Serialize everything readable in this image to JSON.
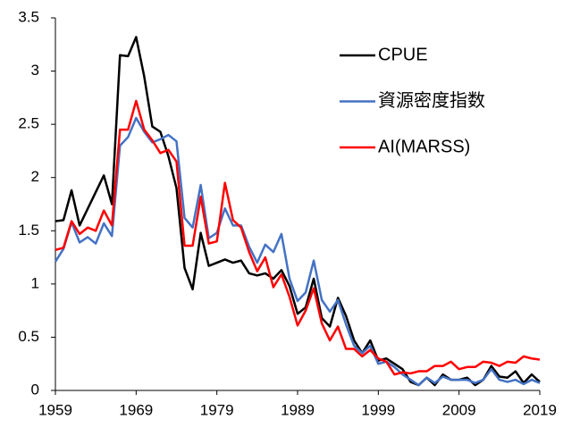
{
  "chart_data": {
    "type": "line",
    "x": [
      1959,
      1960,
      1961,
      1962,
      1963,
      1964,
      1965,
      1966,
      1967,
      1968,
      1969,
      1970,
      1971,
      1972,
      1973,
      1974,
      1975,
      1976,
      1977,
      1978,
      1979,
      1980,
      1981,
      1982,
      1983,
      1984,
      1985,
      1986,
      1987,
      1988,
      1989,
      1990,
      1991,
      1992,
      1993,
      1994,
      1995,
      1996,
      1997,
      1998,
      1999,
      2000,
      2001,
      2002,
      2003,
      2004,
      2005,
      2006,
      2007,
      2008,
      2009,
      2010,
      2011,
      2012,
      2013,
      2014,
      2015,
      2016,
      2017,
      2018,
      2019
    ],
    "series": [
      {
        "name": "CPUE",
        "color": "#000000",
        "x": [
          1959,
          1960,
          1961,
          1962,
          1965,
          1966,
          1967,
          1968,
          1969,
          1970,
          1971,
          1972,
          1973,
          1974,
          1975,
          1976,
          1977,
          1978,
          1979,
          1980,
          1981,
          1982,
          1983,
          1984,
          1985,
          1986,
          1987,
          1988,
          1989,
          1990,
          1991,
          1992,
          1993,
          1994,
          1995,
          1996,
          1997,
          1998,
          1999,
          2000,
          2001,
          2002,
          2003,
          2004,
          2005,
          2006,
          2007,
          2008,
          2009,
          2010,
          2011,
          2012,
          2013,
          2014,
          2015,
          2016,
          2017,
          2018,
          2019
        ],
        "values": [
          1.59,
          1.6,
          1.88,
          1.55,
          2.02,
          1.75,
          3.15,
          3.14,
          3.32,
          2.95,
          2.48,
          2.43,
          2.2,
          1.9,
          1.15,
          0.95,
          1.48,
          1.17,
          1.2,
          1.23,
          1.2,
          1.22,
          1.1,
          1.08,
          1.1,
          1.05,
          1.13,
          0.98,
          0.72,
          0.78,
          1.05,
          0.68,
          0.6,
          0.87,
          0.7,
          0.47,
          0.35,
          0.47,
          0.28,
          0.3,
          0.25,
          0.2,
          0.08,
          0.05,
          0.12,
          0.05,
          0.15,
          0.1,
          0.1,
          0.12,
          0.05,
          0.1,
          0.23,
          0.13,
          0.12,
          0.18,
          0.07,
          0.15,
          0.08
        ]
      },
      {
        "name": "資源密度指数",
        "color": "#4472c4",
        "values": [
          1.21,
          1.33,
          1.58,
          1.39,
          1.44,
          1.38,
          1.57,
          1.45,
          2.3,
          2.38,
          2.56,
          2.43,
          2.33,
          2.36,
          2.4,
          2.34,
          1.62,
          1.53,
          1.93,
          1.43,
          1.48,
          1.71,
          1.55,
          1.55,
          1.35,
          1.2,
          1.37,
          1.3,
          1.47,
          1.05,
          0.84,
          0.92,
          1.22,
          0.85,
          0.74,
          0.85,
          0.62,
          0.42,
          0.35,
          0.42,
          0.25,
          0.27,
          0.22,
          0.15,
          0.1,
          0.05,
          0.12,
          0.07,
          0.13,
          0.1,
          0.1,
          0.1,
          0.07,
          0.1,
          0.2,
          0.1,
          0.08,
          0.1,
          0.06,
          0.1,
          0.07
        ]
      },
      {
        "name": "AI(MARSS)",
        "color": "#ff0000",
        "values": [
          1.32,
          1.34,
          1.59,
          1.47,
          1.53,
          1.5,
          1.69,
          1.55,
          2.45,
          2.45,
          2.72,
          2.45,
          2.35,
          2.23,
          2.26,
          2.15,
          1.36,
          1.36,
          1.82,
          1.38,
          1.4,
          1.95,
          1.6,
          1.53,
          1.3,
          1.12,
          1.25,
          0.97,
          1.09,
          0.88,
          0.61,
          0.75,
          0.96,
          0.63,
          0.47,
          0.6,
          0.39,
          0.39,
          0.32,
          0.38,
          0.3,
          0.27,
          0.15,
          0.17,
          0.16,
          0.18,
          0.18,
          0.23,
          0.23,
          0.27,
          0.2,
          0.22,
          0.22,
          0.27,
          0.26,
          0.23,
          0.27,
          0.26,
          0.32,
          0.3,
          0.29
        ]
      }
    ],
    "xlim": [
      1959,
      2019
    ],
    "xticks": [
      1959,
      1969,
      1979,
      1989,
      1999,
      2009,
      2019
    ],
    "ylim": [
      0,
      3.5
    ],
    "yticks": [
      0,
      0.5,
      1,
      1.5,
      2,
      2.5,
      3,
      3.5
    ],
    "grid": false,
    "legend": "upper-right"
  }
}
